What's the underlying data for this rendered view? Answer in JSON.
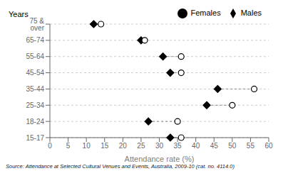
{
  "chart_data": {
    "type": "dot",
    "orientation": "horizontal",
    "categories": [
      "75 & over",
      "65-74",
      "55-64",
      "45-54",
      "35-44",
      "25-34",
      "18-24",
      "15-17"
    ],
    "series": [
      {
        "name": "Males",
        "color": "#000000",
        "marker": "diamond",
        "values": [
          12,
          25,
          31,
          33,
          46,
          43,
          27,
          33
        ]
      },
      {
        "name": "Females",
        "color": "#000000",
        "marker": "open_circle",
        "values": [
          14,
          26,
          36,
          36,
          56,
          50,
          35,
          36
        ]
      }
    ],
    "xlim": [
      0,
      60
    ],
    "xticks": [
      0,
      5,
      10,
      15,
      20,
      25,
      30,
      35,
      40,
      45,
      50,
      55,
      60
    ],
    "xlabel": "Attendance rate (%)",
    "ylabel": "Years",
    "annotations": [
      "Source: Attendance at Selected Cultural Venues and Events, Australia, 2009-10 (cat. no. 4114.0)"
    ],
    "grid": true,
    "legend": "upper right"
  }
}
